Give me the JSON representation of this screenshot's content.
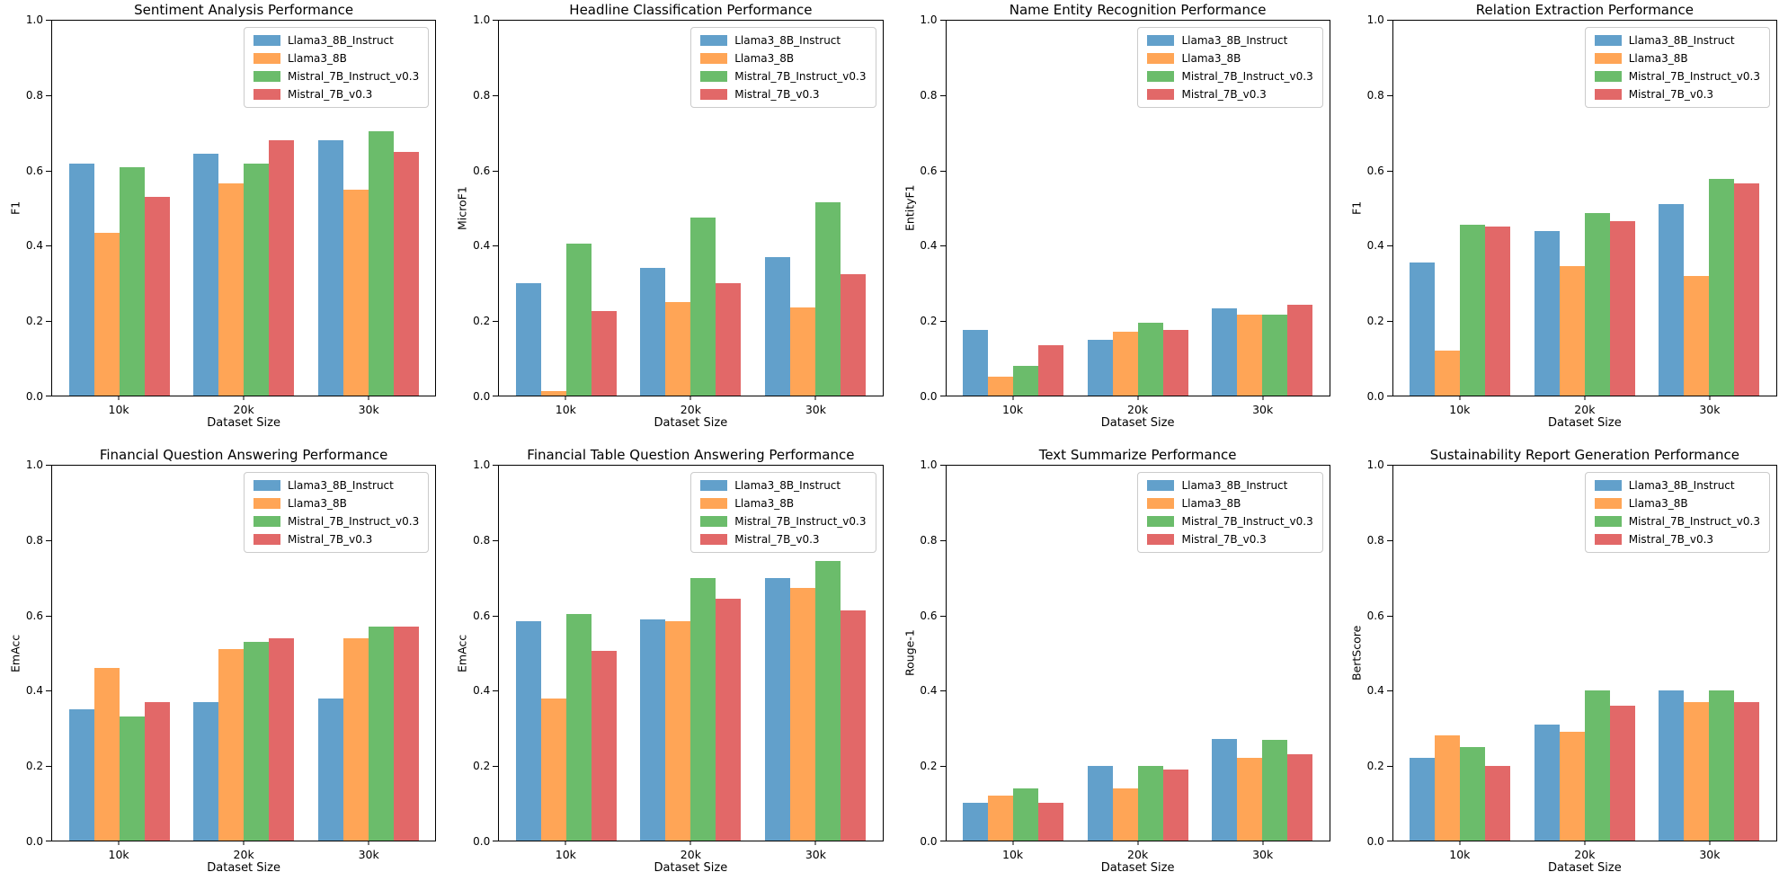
{
  "models": [
    {
      "name": "Llama3_8B_Instruct",
      "color": "#62a0cb"
    },
    {
      "name": "Llama3_8B",
      "color": "#ffa556"
    },
    {
      "name": "Mistral_7B_Instruct_v0.3",
      "color": "#6bbc6b"
    },
    {
      "name": "Mistral_7B_v0.3",
      "color": "#e26868"
    }
  ],
  "y_ticks": [
    "0.0",
    "0.2",
    "0.4",
    "0.6",
    "0.8",
    "1.0"
  ],
  "chart_data": [
    {
      "type": "bar",
      "title": "Sentiment Analysis Performance",
      "xlabel": "Dataset Size",
      "ylabel": "F1",
      "categories": [
        "10k",
        "20k",
        "30k"
      ],
      "ylim": [
        0,
        1
      ],
      "grid": false,
      "legend_position": "upper right",
      "series": [
        {
          "name": "Llama3_8B_Instruct",
          "values": [
            0.62,
            0.645,
            0.68
          ]
        },
        {
          "name": "Llama3_8B",
          "values": [
            0.435,
            0.565,
            0.55
          ]
        },
        {
          "name": "Mistral_7B_Instruct_v0.3",
          "values": [
            0.61,
            0.62,
            0.705
          ]
        },
        {
          "name": "Mistral_7B_v0.3",
          "values": [
            0.53,
            0.68,
            0.65
          ]
        }
      ]
    },
    {
      "type": "bar",
      "title": "Headline Classification Performance",
      "xlabel": "Dataset Size",
      "ylabel": "MicroF1",
      "categories": [
        "10k",
        "20k",
        "30k"
      ],
      "ylim": [
        0,
        1
      ],
      "grid": false,
      "legend_position": "upper right",
      "series": [
        {
          "name": "Llama3_8B_Instruct",
          "values": [
            0.3,
            0.34,
            0.37
          ]
        },
        {
          "name": "Llama3_8B",
          "values": [
            0.012,
            0.25,
            0.235
          ]
        },
        {
          "name": "Mistral_7B_Instruct_v0.3",
          "values": [
            0.405,
            0.475,
            0.515
          ]
        },
        {
          "name": "Mistral_7B_v0.3",
          "values": [
            0.225,
            0.3,
            0.325
          ]
        }
      ]
    },
    {
      "type": "bar",
      "title": "Name Entity Recognition Performance",
      "xlabel": "Dataset Size",
      "ylabel": "EntityF1",
      "categories": [
        "10k",
        "20k",
        "30k"
      ],
      "ylim": [
        0,
        1
      ],
      "grid": false,
      "legend_position": "upper right",
      "series": [
        {
          "name": "Llama3_8B_Instruct",
          "values": [
            0.175,
            0.15,
            0.232
          ]
        },
        {
          "name": "Llama3_8B",
          "values": [
            0.05,
            0.17,
            0.215
          ]
        },
        {
          "name": "Mistral_7B_Instruct_v0.3",
          "values": [
            0.08,
            0.195,
            0.215
          ]
        },
        {
          "name": "Mistral_7B_v0.3",
          "values": [
            0.135,
            0.175,
            0.242
          ]
        }
      ]
    },
    {
      "type": "bar",
      "title": "Relation Extraction Performance",
      "xlabel": "Dataset Size",
      "ylabel": "F1",
      "categories": [
        "10k",
        "20k",
        "30k"
      ],
      "ylim": [
        0,
        1
      ],
      "grid": false,
      "legend_position": "upper right",
      "series": [
        {
          "name": "Llama3_8B_Instruct",
          "values": [
            0.355,
            0.44,
            0.51
          ]
        },
        {
          "name": "Llama3_8B",
          "values": [
            0.12,
            0.345,
            0.32
          ]
        },
        {
          "name": "Mistral_7B_Instruct_v0.3",
          "values": [
            0.455,
            0.487,
            0.577
          ]
        },
        {
          "name": "Mistral_7B_v0.3",
          "values": [
            0.45,
            0.465,
            0.565
          ]
        }
      ]
    },
    {
      "type": "bar",
      "title": "Financial Question Answering Performance",
      "xlabel": "Dataset Size",
      "ylabel": "EmAcc",
      "categories": [
        "10k",
        "20k",
        "30k"
      ],
      "ylim": [
        0,
        1
      ],
      "grid": false,
      "legend_position": "upper right",
      "series": [
        {
          "name": "Llama3_8B_Instruct",
          "values": [
            0.35,
            0.37,
            0.38
          ]
        },
        {
          "name": "Llama3_8B",
          "values": [
            0.46,
            0.51,
            0.54
          ]
        },
        {
          "name": "Mistral_7B_Instruct_v0.3",
          "values": [
            0.33,
            0.53,
            0.57
          ]
        },
        {
          "name": "Mistral_7B_v0.3",
          "values": [
            0.37,
            0.54,
            0.57
          ]
        }
      ]
    },
    {
      "type": "bar",
      "title": "Financial Table Question Answering Performance",
      "xlabel": "Dataset Size",
      "ylabel": "EmAcc",
      "categories": [
        "10k",
        "20k",
        "30k"
      ],
      "ylim": [
        0,
        1
      ],
      "grid": false,
      "legend_position": "upper right",
      "series": [
        {
          "name": "Llama3_8B_Instruct",
          "values": [
            0.585,
            0.59,
            0.7
          ]
        },
        {
          "name": "Llama3_8B",
          "values": [
            0.38,
            0.585,
            0.675
          ]
        },
        {
          "name": "Mistral_7B_Instruct_v0.3",
          "values": [
            0.605,
            0.7,
            0.745
          ]
        },
        {
          "name": "Mistral_7B_v0.3",
          "values": [
            0.505,
            0.645,
            0.615
          ]
        }
      ]
    },
    {
      "type": "bar",
      "title": "Text Summarize Performance",
      "xlabel": "Dataset Size",
      "ylabel": "Rouge-1",
      "categories": [
        "10k",
        "20k",
        "30k"
      ],
      "ylim": [
        0,
        1
      ],
      "grid": false,
      "legend_position": "upper right",
      "series": [
        {
          "name": "Llama3_8B_Instruct",
          "values": [
            0.1,
            0.2,
            0.27
          ]
        },
        {
          "name": "Llama3_8B",
          "values": [
            0.12,
            0.14,
            0.22
          ]
        },
        {
          "name": "Mistral_7B_Instruct_v0.3",
          "values": [
            0.14,
            0.2,
            0.268
          ]
        },
        {
          "name": "Mistral_7B_v0.3",
          "values": [
            0.1,
            0.19,
            0.23
          ]
        }
      ]
    },
    {
      "type": "bar",
      "title": "Sustainability Report Generation Performance",
      "xlabel": "Dataset Size",
      "ylabel": "BertScore",
      "categories": [
        "10k",
        "20k",
        "30k"
      ],
      "ylim": [
        0,
        1
      ],
      "grid": false,
      "legend_position": "upper right",
      "series": [
        {
          "name": "Llama3_8B_Instruct",
          "values": [
            0.22,
            0.31,
            0.4
          ]
        },
        {
          "name": "Llama3_8B",
          "values": [
            0.28,
            0.29,
            0.37
          ]
        },
        {
          "name": "Mistral_7B_Instruct_v0.3",
          "values": [
            0.25,
            0.4,
            0.4
          ]
        },
        {
          "name": "Mistral_7B_v0.3",
          "values": [
            0.2,
            0.36,
            0.37
          ]
        }
      ]
    }
  ]
}
